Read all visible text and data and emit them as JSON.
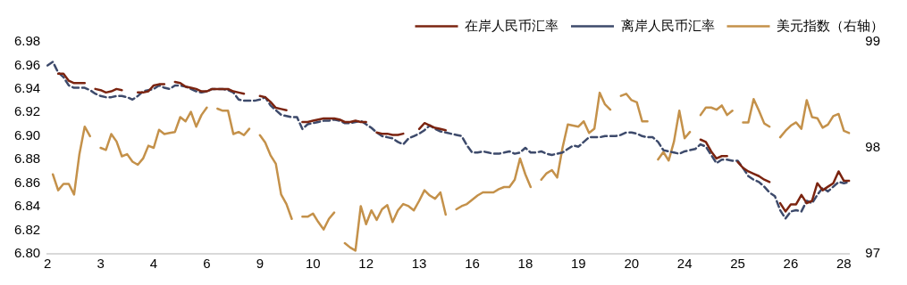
{
  "chart_data": {
    "type": "line",
    "legend": "top",
    "grid": false,
    "categories": [
      "2",
      null,
      null,
      null,
      null,
      null,
      null,
      null,
      null,
      null,
      "3",
      null,
      null,
      null,
      null,
      null,
      null,
      null,
      null,
      null,
      "4",
      null,
      null,
      null,
      null,
      null,
      null,
      null,
      null,
      null,
      "6",
      null,
      null,
      null,
      null,
      null,
      null,
      null,
      null,
      null,
      "9",
      null,
      null,
      null,
      null,
      null,
      null,
      null,
      null,
      null,
      "10",
      null,
      null,
      null,
      null,
      null,
      null,
      null,
      null,
      null,
      "12",
      null,
      null,
      null,
      null,
      null,
      null,
      null,
      null,
      null,
      "13",
      null,
      null,
      null,
      null,
      null,
      null,
      null,
      null,
      null,
      "16",
      null,
      null,
      null,
      null,
      null,
      null,
      null,
      null,
      null,
      "18",
      null,
      null,
      null,
      null,
      null,
      null,
      null,
      null,
      null,
      "19",
      null,
      null,
      null,
      null,
      null,
      null,
      null,
      null,
      null,
      "20",
      null,
      null,
      null,
      null,
      null,
      null,
      null,
      null,
      null,
      "24",
      null,
      null,
      null,
      null,
      null,
      null,
      null,
      null,
      null,
      "25",
      null,
      null,
      null,
      null,
      null,
      null,
      null,
      null,
      null,
      "26",
      null,
      null,
      null,
      null,
      null,
      null,
      null,
      null,
      null,
      "28",
      null
    ],
    "ylim": [
      6.8,
      6.98
    ],
    "yticks": [
      {
        "value": 6.8,
        "label": "6.80"
      },
      {
        "value": 6.82,
        "label": "6.82"
      },
      {
        "value": 6.84,
        "label": "6.84"
      },
      {
        "value": 6.86,
        "label": "6.86"
      },
      {
        "value": 6.88,
        "label": "6.88"
      },
      {
        "value": 6.9,
        "label": "6.90"
      },
      {
        "value": 6.92,
        "label": "6.92"
      },
      {
        "value": 6.94,
        "label": "6.94"
      },
      {
        "value": 6.96,
        "label": "6.96"
      },
      {
        "value": 6.98,
        "label": "6.98"
      }
    ],
    "y2lim": [
      97,
      99
    ],
    "y2ticks": [
      97,
      98,
      99
    ],
    "series": [
      {
        "name": "在岸人民币汇率",
        "color": "#7b2410",
        "line_style": "solid",
        "values": [
          null,
          null,
          6.953,
          6.953,
          6.947,
          6.945,
          6.945,
          6.945,
          null,
          6.94,
          6.939,
          6.937,
          6.938,
          6.94,
          6.939,
          null,
          null,
          6.937,
          6.937,
          6.938,
          6.943,
          6.944,
          6.944,
          null,
          6.946,
          6.945,
          6.942,
          6.941,
          6.94,
          6.938,
          6.938,
          6.94,
          6.94,
          6.94,
          6.94,
          6.938,
          6.937,
          6.936,
          null,
          null,
          6.934,
          6.933,
          6.929,
          6.924,
          6.923,
          6.922,
          null,
          null,
          6.912,
          6.912,
          6.913,
          6.914,
          6.915,
          6.915,
          6.915,
          6.914,
          6.912,
          6.912,
          6.913,
          6.912,
          6.912,
          null,
          6.903,
          6.902,
          6.902,
          6.901,
          6.901,
          6.902,
          null,
          null,
          6.906,
          6.911,
          6.909,
          6.907,
          6.906,
          6.905,
          null,
          null,
          null,
          null,
          null,
          null,
          null,
          null,
          null,
          null,
          null,
          null,
          null,
          null,
          null,
          null,
          null,
          null,
          null,
          null,
          null,
          null,
          null,
          null,
          null,
          null,
          null,
          null,
          null,
          null,
          null,
          null,
          null,
          null,
          null,
          null,
          null,
          null,
          null,
          null,
          null,
          null,
          null,
          null,
          null,
          null,
          null,
          6.897,
          6.895,
          6.887,
          6.881,
          6.883,
          6.883,
          null,
          6.878,
          6.873,
          6.87,
          6.868,
          6.866,
          6.863,
          6.861,
          null,
          6.843,
          6.836,
          6.842,
          6.842,
          6.85,
          6.843,
          6.845,
          6.86,
          6.854,
          6.857,
          6.86,
          6.87,
          6.862,
          6.862
        ]
      },
      {
        "name": "离岸人民币汇率",
        "color": "#3d4a6b",
        "line_style": "dashed",
        "values": [
          6.96,
          6.963,
          6.954,
          6.95,
          6.943,
          6.941,
          6.941,
          6.941,
          6.939,
          6.936,
          6.934,
          6.933,
          6.933,
          6.934,
          6.934,
          6.933,
          6.931,
          6.934,
          6.938,
          6.939,
          6.94,
          6.943,
          6.941,
          6.94,
          6.943,
          6.943,
          6.942,
          6.94,
          6.938,
          6.937,
          6.938,
          6.94,
          6.94,
          6.94,
          6.939,
          6.937,
          6.931,
          6.93,
          6.93,
          6.93,
          6.931,
          6.933,
          6.926,
          6.922,
          6.918,
          6.917,
          6.916,
          6.916,
          6.906,
          6.91,
          6.911,
          6.912,
          6.913,
          6.913,
          6.914,
          6.913,
          6.911,
          6.911,
          6.912,
          6.913,
          6.91,
          6.907,
          6.903,
          6.9,
          6.899,
          6.898,
          6.895,
          6.893,
          6.898,
          6.9,
          6.902,
          6.905,
          6.909,
          6.906,
          6.904,
          6.903,
          6.902,
          6.901,
          6.9,
          6.892,
          6.886,
          6.886,
          6.887,
          6.886,
          6.885,
          6.885,
          6.886,
          6.887,
          6.885,
          6.886,
          6.89,
          6.886,
          6.886,
          6.887,
          6.885,
          6.884,
          6.885,
          6.886,
          6.889,
          6.892,
          6.891,
          6.895,
          6.899,
          6.899,
          6.899,
          6.9,
          6.9,
          6.9,
          6.901,
          6.903,
          6.903,
          6.902,
          6.9,
          6.899,
          6.899,
          6.895,
          6.888,
          6.887,
          6.886,
          6.885,
          6.887,
          6.888,
          6.889,
          6.893,
          6.891,
          6.884,
          6.877,
          6.88,
          6.88,
          6.879,
          6.879,
          6.873,
          6.866,
          6.863,
          6.861,
          6.857,
          6.852,
          6.849,
          6.837,
          6.83,
          6.836,
          6.837,
          6.836,
          6.845,
          6.843,
          6.85,
          6.856,
          6.853,
          6.857,
          6.861,
          6.86,
          6.861
        ]
      },
      {
        "name": "美元指数（右轴）",
        "color": "#c4914a",
        "line_style": "solid",
        "axis": "y2",
        "values": [
          null,
          97.75,
          97.6,
          97.66,
          97.66,
          97.56,
          97.94,
          98.2,
          98.11,
          null,
          98.0,
          97.98,
          98.13,
          98.06,
          97.92,
          97.94,
          97.87,
          97.84,
          97.9,
          98.02,
          98.0,
          98.17,
          98.13,
          98.14,
          98.15,
          98.29,
          98.25,
          98.34,
          98.2,
          98.31,
          98.38,
          null,
          98.37,
          98.35,
          98.35,
          98.13,
          98.15,
          98.12,
          98.18,
          null,
          98.12,
          98.05,
          97.93,
          97.85,
          97.56,
          97.47,
          97.33,
          null,
          97.35,
          97.35,
          97.38,
          97.3,
          97.23,
          97.33,
          97.39,
          null,
          97.1,
          97.06,
          97.03,
          97.45,
          97.28,
          97.41,
          97.32,
          97.42,
          97.46,
          97.3,
          97.41,
          97.47,
          97.45,
          97.41,
          97.5,
          97.6,
          97.55,
          97.52,
          97.58,
          97.37,
          null,
          97.42,
          97.45,
          97.47,
          97.51,
          97.55,
          97.58,
          97.58,
          97.58,
          97.61,
          97.63,
          97.63,
          97.7,
          97.9,
          97.75,
          97.63,
          null,
          97.7,
          97.76,
          97.79,
          97.72,
          98.0,
          98.22,
          98.21,
          98.2,
          98.25,
          98.14,
          98.18,
          98.52,
          98.41,
          98.36,
          null,
          98.49,
          98.51,
          98.45,
          98.43,
          98.25,
          98.25,
          null,
          97.89,
          97.96,
          97.88,
          98.06,
          98.35,
          98.09,
          98.15,
          null,
          98.31,
          98.38,
          98.38,
          98.36,
          98.4,
          98.31,
          98.35,
          null,
          98.24,
          98.24,
          98.46,
          98.35,
          98.23,
          98.2,
          null,
          98.1,
          98.16,
          98.21,
          98.24,
          98.18,
          98.45,
          98.29,
          98.28,
          98.19,
          98.22,
          98.3,
          98.32,
          98.16,
          98.14
        ]
      }
    ]
  }
}
